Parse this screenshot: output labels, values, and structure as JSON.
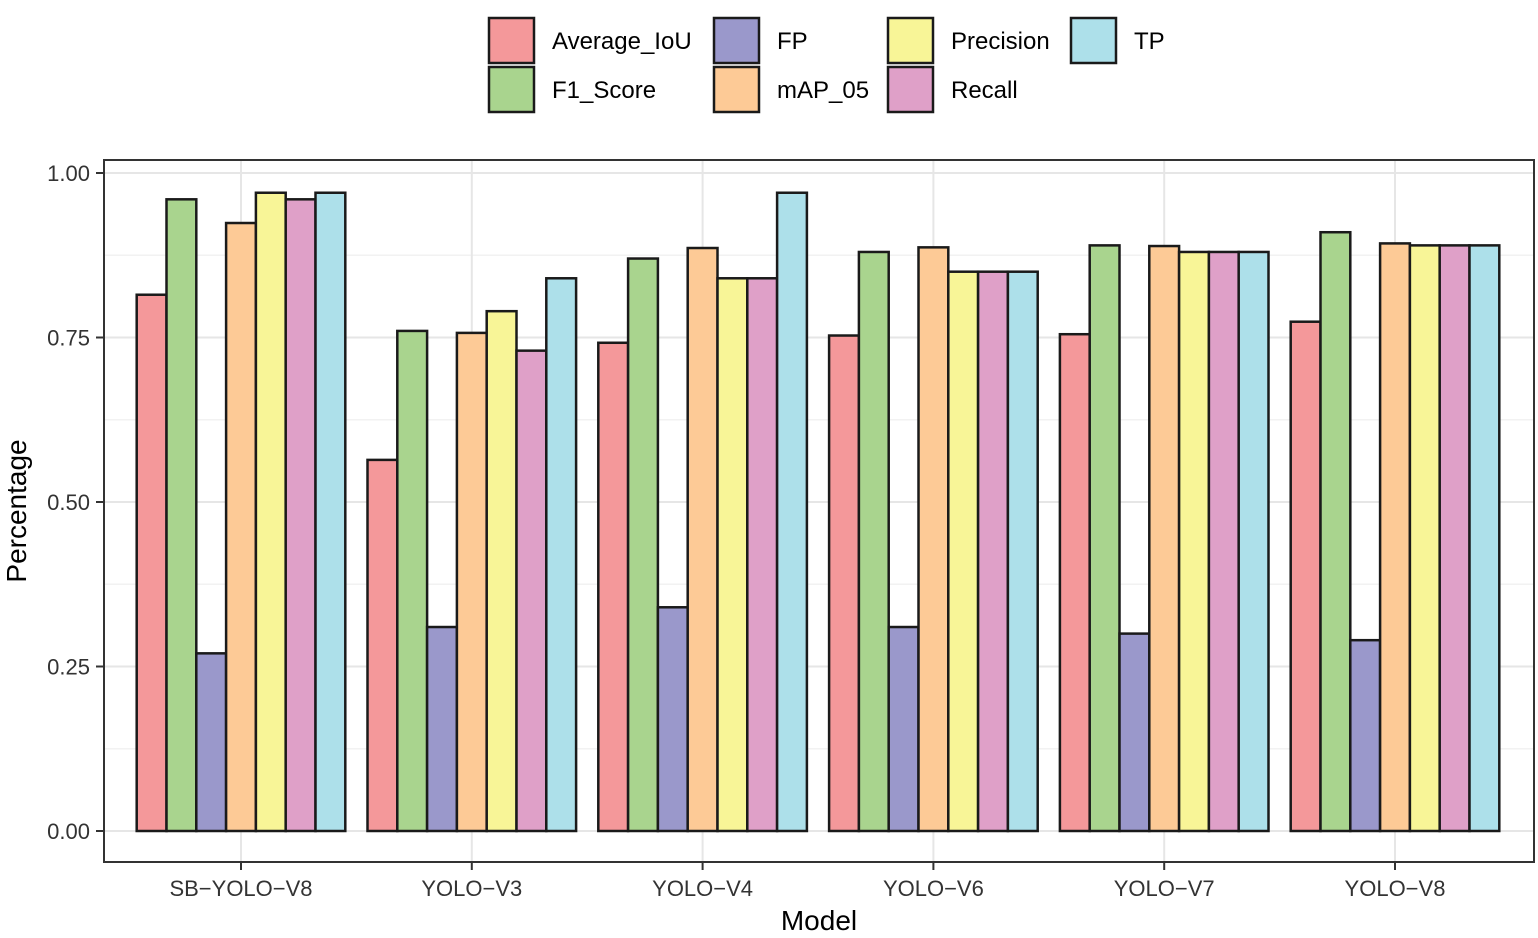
{
  "chart_data": {
    "type": "bar",
    "title": "",
    "xlabel": "Model",
    "ylabel": "Percentage",
    "ylim": [
      0,
      1.0
    ],
    "yticks": [
      "0.00",
      "0.25",
      "0.50",
      "0.75",
      "1.00"
    ],
    "grid": true,
    "legend_position": "top",
    "categories": [
      "SB−YOLO−V8",
      "YOLO−V3",
      "YOLO−V4",
      "YOLO−V6",
      "YOLO−V7",
      "YOLO−V8"
    ],
    "series": [
      {
        "name": "Average_IoU",
        "color": "#f4989a",
        "values": [
          0.815,
          0.564,
          0.742,
          0.753,
          0.755,
          0.774
        ]
      },
      {
        "name": "F1_Score",
        "color": "#a9d48e",
        "values": [
          0.96,
          0.76,
          0.87,
          0.88,
          0.89,
          0.91
        ]
      },
      {
        "name": "FP",
        "color": "#9a98cb",
        "values": [
          0.27,
          0.31,
          0.34,
          0.31,
          0.3,
          0.29
        ]
      },
      {
        "name": "mAP_05",
        "color": "#fdca96",
        "values": [
          0.924,
          0.757,
          0.886,
          0.887,
          0.889,
          0.893
        ]
      },
      {
        "name": "Precision",
        "color": "#f8f597",
        "values": [
          0.97,
          0.79,
          0.84,
          0.85,
          0.88,
          0.89
        ]
      },
      {
        "name": "Recall",
        "color": "#dfa0c8",
        "values": [
          0.96,
          0.73,
          0.84,
          0.85,
          0.88,
          0.89
        ]
      },
      {
        "name": "TP",
        "color": "#ade0ea",
        "values": [
          0.97,
          0.84,
          0.97,
          0.85,
          0.88,
          0.89
        ]
      }
    ],
    "legend_layout": [
      [
        "Average_IoU",
        "FP",
        "Precision",
        "TP"
      ],
      [
        "F1_Score",
        "mAP_05",
        "Recall"
      ]
    ]
  }
}
